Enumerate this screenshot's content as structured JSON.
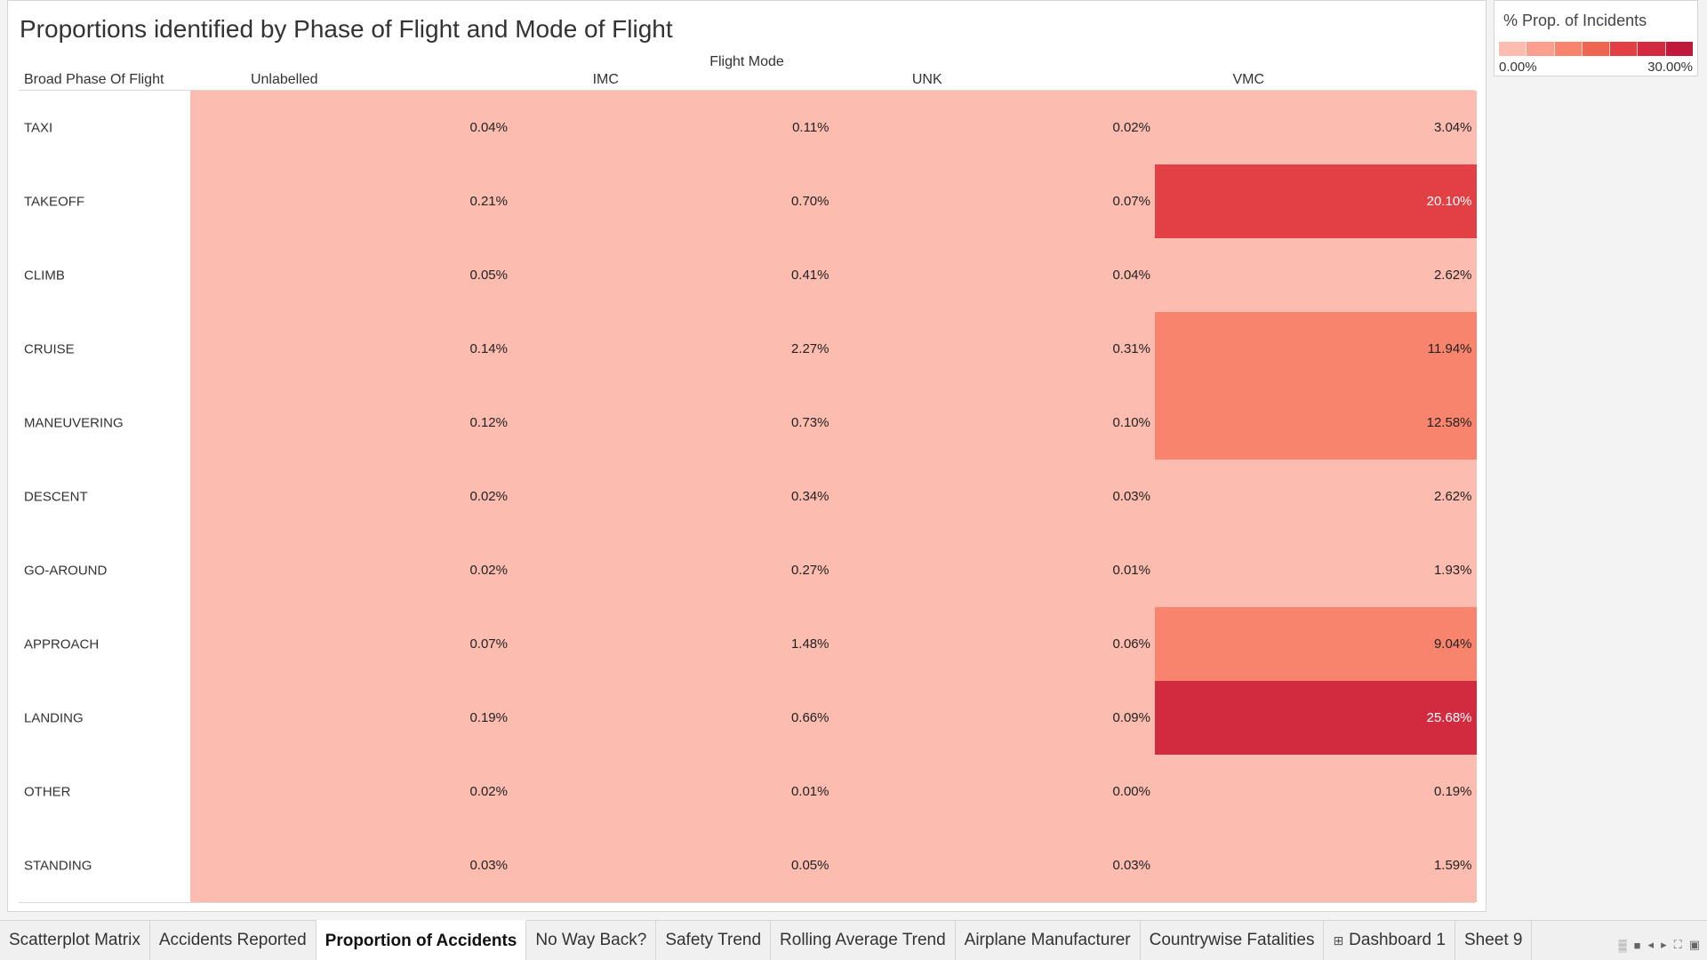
{
  "chart_data": {
    "type": "heatmap",
    "title": "Proportions identified by Phase of Flight and Mode of Flight",
    "column_group_label": "Flight Mode",
    "row_header_title": "Broad Phase Of Flight",
    "columns": [
      "Unlabelled",
      "IMC",
      "UNK",
      "VMC"
    ],
    "rows": [
      "TAXI",
      "TAKEOFF",
      "CLIMB",
      "CRUISE",
      "MANEUVERING",
      "DESCENT",
      "GO-AROUND",
      "APPROACH",
      "LANDING",
      "OTHER",
      "STANDING"
    ],
    "values": [
      [
        0.04,
        0.11,
        0.02,
        3.04
      ],
      [
        0.21,
        0.7,
        0.07,
        20.1
      ],
      [
        0.05,
        0.41,
        0.04,
        2.62
      ],
      [
        0.14,
        2.27,
        0.31,
        11.94
      ],
      [
        0.12,
        0.73,
        0.1,
        12.58
      ],
      [
        0.02,
        0.34,
        0.03,
        2.62
      ],
      [
        0.02,
        0.27,
        0.01,
        1.93
      ],
      [
        0.07,
        1.48,
        0.06,
        9.04
      ],
      [
        0.19,
        0.66,
        0.09,
        25.68
      ],
      [
        0.02,
        0.01,
        0.0,
        0.19
      ],
      [
        0.03,
        0.05,
        0.03,
        1.59
      ]
    ],
    "labels": [
      [
        "0.04%",
        "0.11%",
        "0.02%",
        "3.04%"
      ],
      [
        "0.21%",
        "0.70%",
        "0.07%",
        "20.10%"
      ],
      [
        "0.05%",
        "0.41%",
        "0.04%",
        "2.62%"
      ],
      [
        "0.14%",
        "2.27%",
        "0.31%",
        "11.94%"
      ],
      [
        "0.12%",
        "0.73%",
        "0.10%",
        "12.58%"
      ],
      [
        "0.02%",
        "0.34%",
        "0.03%",
        "2.62%"
      ],
      [
        "0.02%",
        "0.27%",
        "0.01%",
        "1.93%"
      ],
      [
        "0.07%",
        "1.48%",
        "0.06%",
        "9.04%"
      ],
      [
        "0.19%",
        "0.66%",
        "0.09%",
        "25.68%"
      ],
      [
        "0.02%",
        "0.01%",
        "0.00%",
        "0.19%"
      ],
      [
        "0.03%",
        "0.05%",
        "0.03%",
        "1.59%"
      ]
    ],
    "color_scale": {
      "title": "% Prop. of Incidents",
      "min": 0,
      "max": 30,
      "min_label": "0.00%",
      "max_label": "30.00%",
      "steps": [
        "#fcbcaf",
        "#fba08e",
        "#f8846d",
        "#f0654f",
        "#e24044",
        "#d22a3f",
        "#bf1a3a"
      ]
    }
  },
  "tabs": [
    {
      "label": "Scatterplot Matrix",
      "active": false
    },
    {
      "label": "Accidents Reported",
      "active": false
    },
    {
      "label": "Proportion of Accidents",
      "active": true
    },
    {
      "label": "No Way Back?",
      "active": false
    },
    {
      "label": "Safety Trend",
      "active": false
    },
    {
      "label": "Rolling Average Trend",
      "active": false
    },
    {
      "label": "Airplane Manufacturer",
      "active": false
    },
    {
      "label": "Countrywise Fatalities",
      "active": false
    },
    {
      "label": "Dashboard 1",
      "active": false,
      "icon": "dashboard-icon"
    },
    {
      "label": "Sheet 9",
      "active": false
    }
  ],
  "nav_icons": [
    "sheet-sorter-icon",
    "filmstrip-icon",
    "prev-sheet-icon",
    "next-sheet-icon",
    "fullscreen-icon",
    "presentation-icon"
  ]
}
